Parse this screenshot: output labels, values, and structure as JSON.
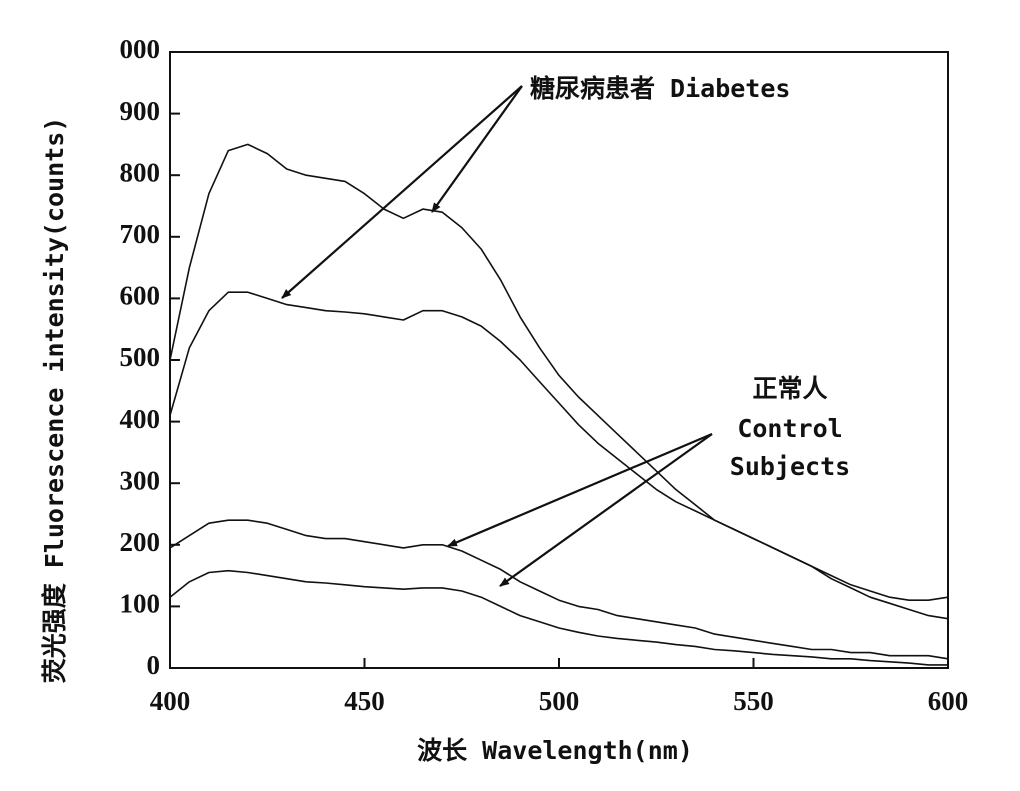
{
  "chart_data": {
    "type": "line",
    "xlabel": "波长 Wavelength(nm)",
    "ylabel": "荧光强度 Fluorescence intensity(counts)",
    "annotations": [
      "糖尿病患者 Diabetes",
      "正常人",
      "Control",
      "Subjects"
    ],
    "xlim": [
      400,
      600
    ],
    "xticks": [
      400,
      450,
      500,
      550,
      600
    ],
    "ylim": [
      0,
      1000
    ],
    "yticks": [
      0,
      100,
      200,
      300,
      400,
      500,
      600,
      700,
      800,
      900,
      {
        "value": 1000,
        "label": "000"
      }
    ],
    "x": [
      400,
      405,
      410,
      415,
      420,
      425,
      430,
      435,
      440,
      445,
      450,
      455,
      460,
      465,
      470,
      475,
      480,
      485,
      490,
      495,
      500,
      505,
      510,
      515,
      520,
      525,
      530,
      535,
      540,
      545,
      550,
      555,
      560,
      565,
      570,
      575,
      580,
      585,
      590,
      595,
      600
    ],
    "series": [
      {
        "color": "#111111",
        "values": [
          500,
          650,
          770,
          840,
          850,
          835,
          810,
          800,
          795,
          790,
          770,
          745,
          730,
          745,
          740,
          715,
          680,
          630,
          570,
          520,
          475,
          440,
          410,
          380,
          350,
          320,
          290,
          265,
          240,
          225,
          210,
          195,
          180,
          165,
          150,
          135,
          125,
          115,
          110,
          110,
          115
        ]
      },
      {
        "color": "#111111",
        "values": [
          410,
          520,
          580,
          610,
          610,
          600,
          590,
          585,
          580,
          578,
          575,
          570,
          565,
          580,
          580,
          570,
          555,
          530,
          500,
          465,
          430,
          395,
          365,
          340,
          315,
          290,
          270,
          255,
          240,
          225,
          210,
          195,
          180,
          165,
          145,
          130,
          115,
          105,
          95,
          85,
          80
        ]
      },
      {
        "color": "#111111",
        "values": [
          195,
          215,
          235,
          240,
          240,
          235,
          225,
          215,
          210,
          210,
          205,
          200,
          195,
          200,
          200,
          190,
          175,
          160,
          140,
          125,
          110,
          100,
          95,
          85,
          80,
          75,
          70,
          65,
          55,
          50,
          45,
          40,
          35,
          30,
          30,
          25,
          25,
          20,
          20,
          20,
          15
        ]
      },
      {
        "color": "#111111",
        "values": [
          115,
          140,
          155,
          158,
          155,
          150,
          145,
          140,
          138,
          135,
          132,
          130,
          128,
          130,
          130,
          125,
          115,
          100,
          85,
          75,
          65,
          58,
          52,
          48,
          45,
          42,
          38,
          35,
          30,
          28,
          25,
          22,
          20,
          18,
          15,
          15,
          12,
          10,
          8,
          5,
          5
        ]
      }
    ]
  }
}
